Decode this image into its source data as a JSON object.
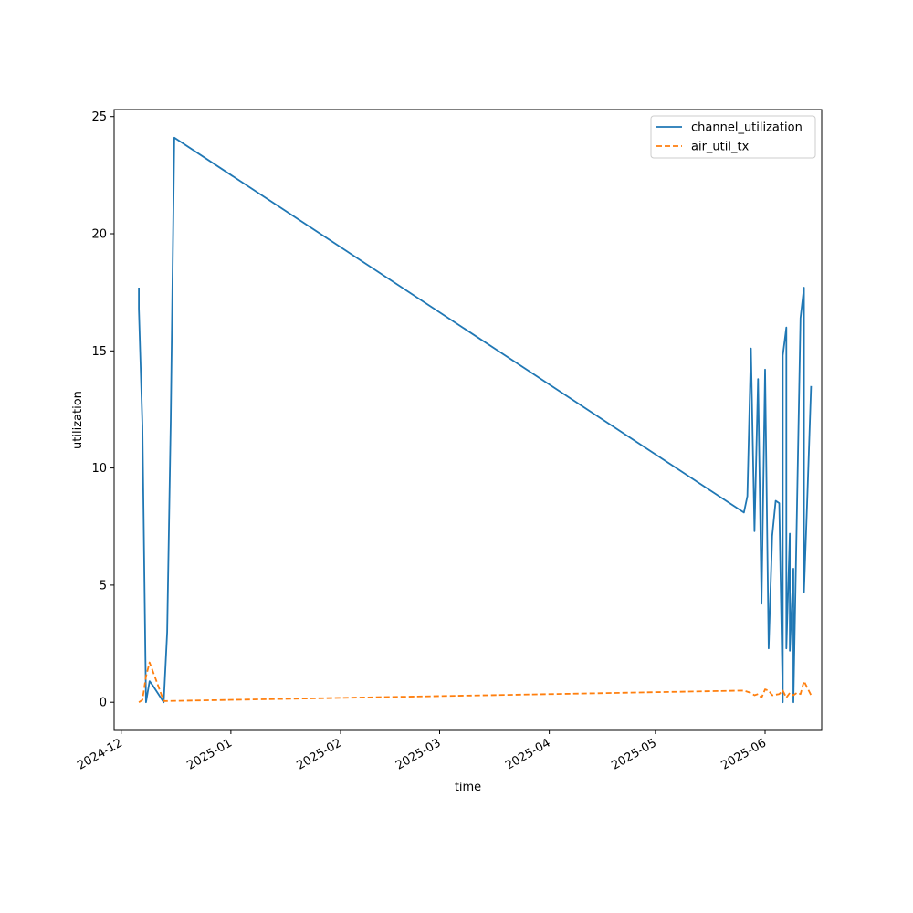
{
  "chart_data": {
    "type": "line",
    "title": "",
    "xlabel": "time",
    "ylabel": "utilization",
    "x_axis_kind": "date",
    "xlim": [
      "2024-11-29",
      "2025-06-17"
    ],
    "ylim": [
      -1.2,
      25.3
    ],
    "x_ticks": [
      "2024-12",
      "2025-01",
      "2025-02",
      "2025-03",
      "2025-04",
      "2025-05",
      "2025-06"
    ],
    "y_ticks": [
      0,
      5,
      10,
      15,
      20,
      25
    ],
    "grid": false,
    "legend": {
      "position": "top-right",
      "entries": [
        "channel_utilization",
        "air_util_tx"
      ]
    },
    "series": [
      {
        "name": "channel_utilization",
        "color": "#1f77b4",
        "style": "solid",
        "points": [
          [
            "2024-12-06",
            17.7
          ],
          [
            "2024-12-06",
            16.8
          ],
          [
            "2024-12-07",
            11.8
          ],
          [
            "2024-12-08",
            0.0
          ],
          [
            "2024-12-09",
            0.9
          ],
          [
            "2024-12-10",
            0.7
          ],
          [
            "2024-12-13",
            0.0
          ],
          [
            "2024-12-14",
            3.0
          ],
          [
            "2024-12-15",
            12.0
          ],
          [
            "2024-12-16",
            24.1
          ],
          [
            "2025-05-26",
            8.1
          ],
          [
            "2025-05-27",
            8.8
          ],
          [
            "2025-05-28",
            15.1
          ],
          [
            "2025-05-29",
            7.3
          ],
          [
            "2025-05-30",
            13.8
          ],
          [
            "2025-05-31",
            4.2
          ],
          [
            "2025-06-01",
            14.2
          ],
          [
            "2025-06-02",
            2.3
          ],
          [
            "2025-06-03",
            7.1
          ],
          [
            "2025-06-04",
            8.6
          ],
          [
            "2025-06-05",
            8.5
          ],
          [
            "2025-06-06",
            0.0
          ],
          [
            "2025-06-06",
            14.8
          ],
          [
            "2025-06-07",
            16.0
          ],
          [
            "2025-06-07",
            2.3
          ],
          [
            "2025-06-08",
            7.2
          ],
          [
            "2025-06-08",
            2.2
          ],
          [
            "2025-06-09",
            5.7
          ],
          [
            "2025-06-09",
            0.0
          ],
          [
            "2025-06-10",
            8.2
          ],
          [
            "2025-06-11",
            16.4
          ],
          [
            "2025-06-12",
            17.7
          ],
          [
            "2025-06-12",
            4.7
          ],
          [
            "2025-06-13",
            9.0
          ],
          [
            "2025-06-14",
            13.5
          ]
        ]
      },
      {
        "name": "air_util_tx",
        "color": "#ff7f0e",
        "style": "dashed",
        "points": [
          [
            "2024-12-06",
            0.0
          ],
          [
            "2024-12-07",
            0.1
          ],
          [
            "2024-12-08",
            1.1
          ],
          [
            "2024-12-09",
            1.7
          ],
          [
            "2024-12-10",
            1.3
          ],
          [
            "2024-12-13",
            0.05
          ],
          [
            "2025-05-26",
            0.5
          ],
          [
            "2025-05-28",
            0.4
          ],
          [
            "2025-05-29",
            0.3
          ],
          [
            "2025-05-30",
            0.35
          ],
          [
            "2025-05-31",
            0.2
          ],
          [
            "2025-06-01",
            0.55
          ],
          [
            "2025-06-02",
            0.5
          ],
          [
            "2025-06-03",
            0.3
          ],
          [
            "2025-06-05",
            0.35
          ],
          [
            "2025-06-06",
            0.5
          ],
          [
            "2025-06-07",
            0.2
          ],
          [
            "2025-06-08",
            0.4
          ],
          [
            "2025-06-09",
            0.3
          ],
          [
            "2025-06-10",
            0.4
          ],
          [
            "2025-06-11",
            0.35
          ],
          [
            "2025-06-12",
            0.9
          ],
          [
            "2025-06-13",
            0.6
          ],
          [
            "2025-06-14",
            0.3
          ]
        ]
      }
    ]
  }
}
